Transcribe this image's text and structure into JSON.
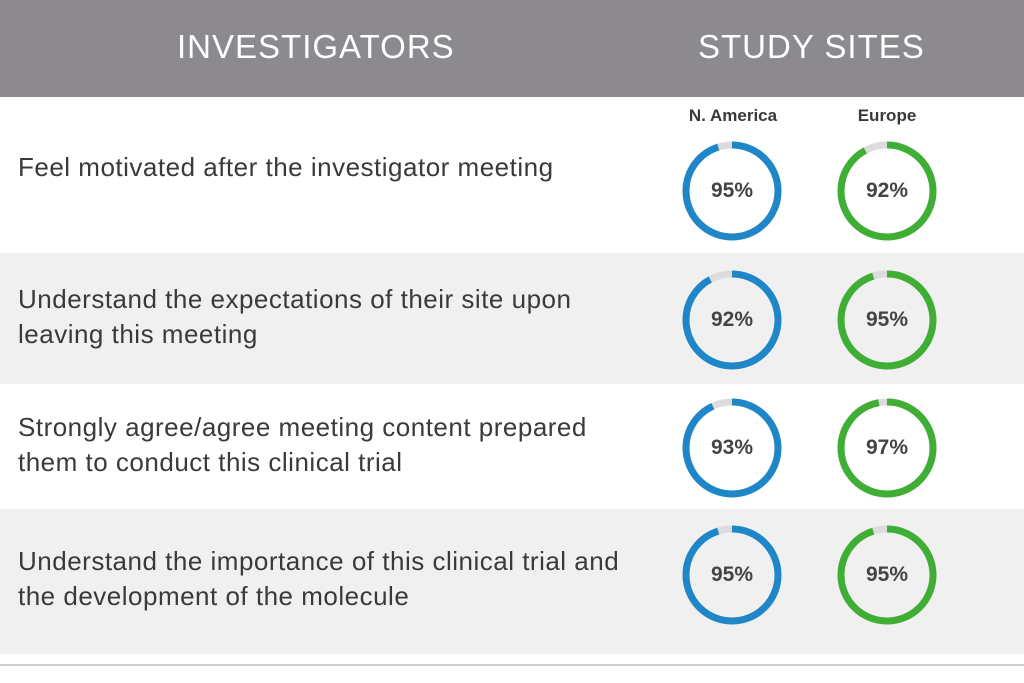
{
  "header": {
    "left_title": "INVESTIGATORS",
    "right_title": "STUDY SITES"
  },
  "columns": {
    "north_america": "N. America",
    "europe": "Europe"
  },
  "colors": {
    "header_bg": "#8d8a8f",
    "north_america_ring": "#1f86c8",
    "europe_ring": "#3fae35",
    "ring_track": "#dcdcdc",
    "shaded_row": "#f0f0f0"
  },
  "rows": [
    {
      "statement": "Feel motivated after the investigator meeting",
      "north_america_label": "95%",
      "europe_label": "92%"
    },
    {
      "statement": "Understand the expectations of their site upon leaving this meeting",
      "north_america_label": "92%",
      "europe_label": "95%"
    },
    {
      "statement": "Strongly agree/agree meeting content prepared them to conduct this clinical trial",
      "north_america_label": "93%",
      "europe_label": "97%"
    },
    {
      "statement": "Understand the importance of this clinical trial and the development of the molecule",
      "north_america_label": "95%",
      "europe_label": "95%"
    }
  ],
  "chart_data": {
    "type": "table",
    "series": [
      {
        "name": "N. America",
        "values": [
          95,
          92,
          93,
          95
        ]
      },
      {
        "name": "Europe",
        "values": [
          92,
          95,
          97,
          95
        ]
      }
    ],
    "categories": [
      "Feel motivated after the investigator meeting",
      "Understand the expectations of their site upon leaving this meeting",
      "Strongly agree/agree meeting content prepared them to conduct this clinical trial",
      "Understand the importance of this clinical trial and the development of the molecule"
    ],
    "unit": "%",
    "ylim": [
      0,
      100
    ]
  }
}
